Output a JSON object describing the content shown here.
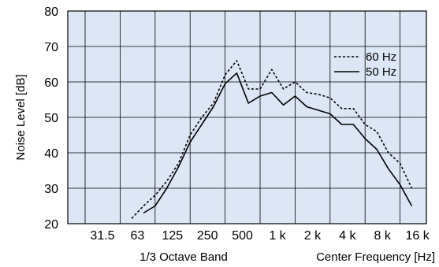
{
  "chart_data": {
    "type": "line",
    "xlabel": "1/3 Octave Band",
    "xlabel_right": "Center Frequency [Hz]",
    "ylabel": "Noise Level [dB]",
    "ylim": [
      20,
      80
    ],
    "yticks": [
      20,
      30,
      40,
      50,
      60,
      70,
      80
    ],
    "xticks": [
      "31.5",
      "63",
      "125",
      "250",
      "500",
      "1 k",
      "2 k",
      "4 k",
      "8 k",
      "16 k"
    ],
    "x_unit": "1/3 octave",
    "background_color": "#dce6f5",
    "grid": true,
    "legend": {
      "placement": "top-right"
    },
    "series": [
      {
        "name": "60 Hz",
        "style": "dashed",
        "color": "#000000",
        "x": [
          "80",
          "100",
          "125",
          "160",
          "200",
          "250",
          "315",
          "400",
          "500",
          "630",
          "800",
          "1 k",
          "1.25 k",
          "1.6 k",
          "2 k",
          "2.5 k",
          "3.15 k",
          "4 k",
          "5 k",
          "6.3 k",
          "8 k",
          "10 k",
          "12.5 k",
          "16 k",
          "20 k"
        ],
        "values": [
          21.5,
          25,
          28,
          32,
          37,
          45,
          50,
          54,
          62,
          66,
          58,
          58,
          63.5,
          58,
          60,
          57,
          56.5,
          55.5,
          52.5,
          52.5,
          48,
          46,
          40,
          37,
          30
        ]
      },
      {
        "name": "50 Hz",
        "style": "solid",
        "color": "#000000",
        "x": [
          "100",
          "125",
          "160",
          "200",
          "250",
          "315",
          "400",
          "500",
          "630",
          "800",
          "1 k",
          "1.25 k",
          "1.6 k",
          "2 k",
          "2.5 k",
          "3.15 k",
          "4 k",
          "5 k",
          "6.3 k",
          "8 k",
          "10 k",
          "12.5 k",
          "16 k",
          "20 k"
        ],
        "values": [
          23,
          25,
          30,
          36,
          43,
          48,
          53,
          59.5,
          62.5,
          54,
          56,
          57,
          53.5,
          56,
          53,
          52,
          51,
          48,
          48,
          44,
          41,
          35.5,
          31,
          25
        ]
      }
    ]
  }
}
